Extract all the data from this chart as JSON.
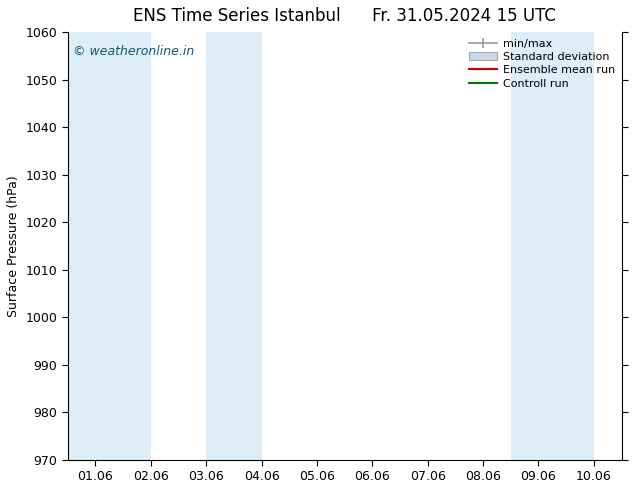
{
  "title_left": "ENS Time Series Istanbul",
  "title_right": "Fr. 31.05.2024 15 UTC",
  "ylabel": "Surface Pressure (hPa)",
  "ylim": [
    970,
    1060
  ],
  "yticks": [
    970,
    980,
    990,
    1000,
    1010,
    1020,
    1030,
    1040,
    1050,
    1060
  ],
  "xtick_labels": [
    "01.06",
    "02.06",
    "03.06",
    "04.06",
    "05.06",
    "06.06",
    "07.06",
    "08.06",
    "09.06",
    "10.06"
  ],
  "xtick_positions": [
    0,
    1,
    2,
    3,
    4,
    5,
    6,
    7,
    8,
    9
  ],
  "xlim": [
    -0.5,
    9.5
  ],
  "bg_color": "#ffffff",
  "plot_bg_color": "#ffffff",
  "watermark": "© weatheronline.in",
  "watermark_color": "#1a5276",
  "shaded_bands": [
    {
      "xstart": -0.5,
      "xend": 1.0,
      "color": "#ddeef8"
    },
    {
      "xstart": 2.0,
      "xend": 3.0,
      "color": "#ddeef8"
    },
    {
      "xstart": 7.5,
      "xend": 9.0,
      "color": "#ddeef8"
    },
    {
      "xstart": 9.5,
      "xend": 9.5,
      "color": "#ddeef8"
    }
  ],
  "legend_entries": [
    {
      "label": "min/max",
      "style": "minmax"
    },
    {
      "label": "Standard deviation",
      "style": "stddev"
    },
    {
      "label": "Ensemble mean run",
      "color": "#cc0000",
      "style": "line"
    },
    {
      "label": "Controll run",
      "color": "#007700",
      "style": "line"
    }
  ],
  "title_fontsize": 12,
  "axis_label_fontsize": 9,
  "tick_fontsize": 9,
  "legend_fontsize": 8
}
